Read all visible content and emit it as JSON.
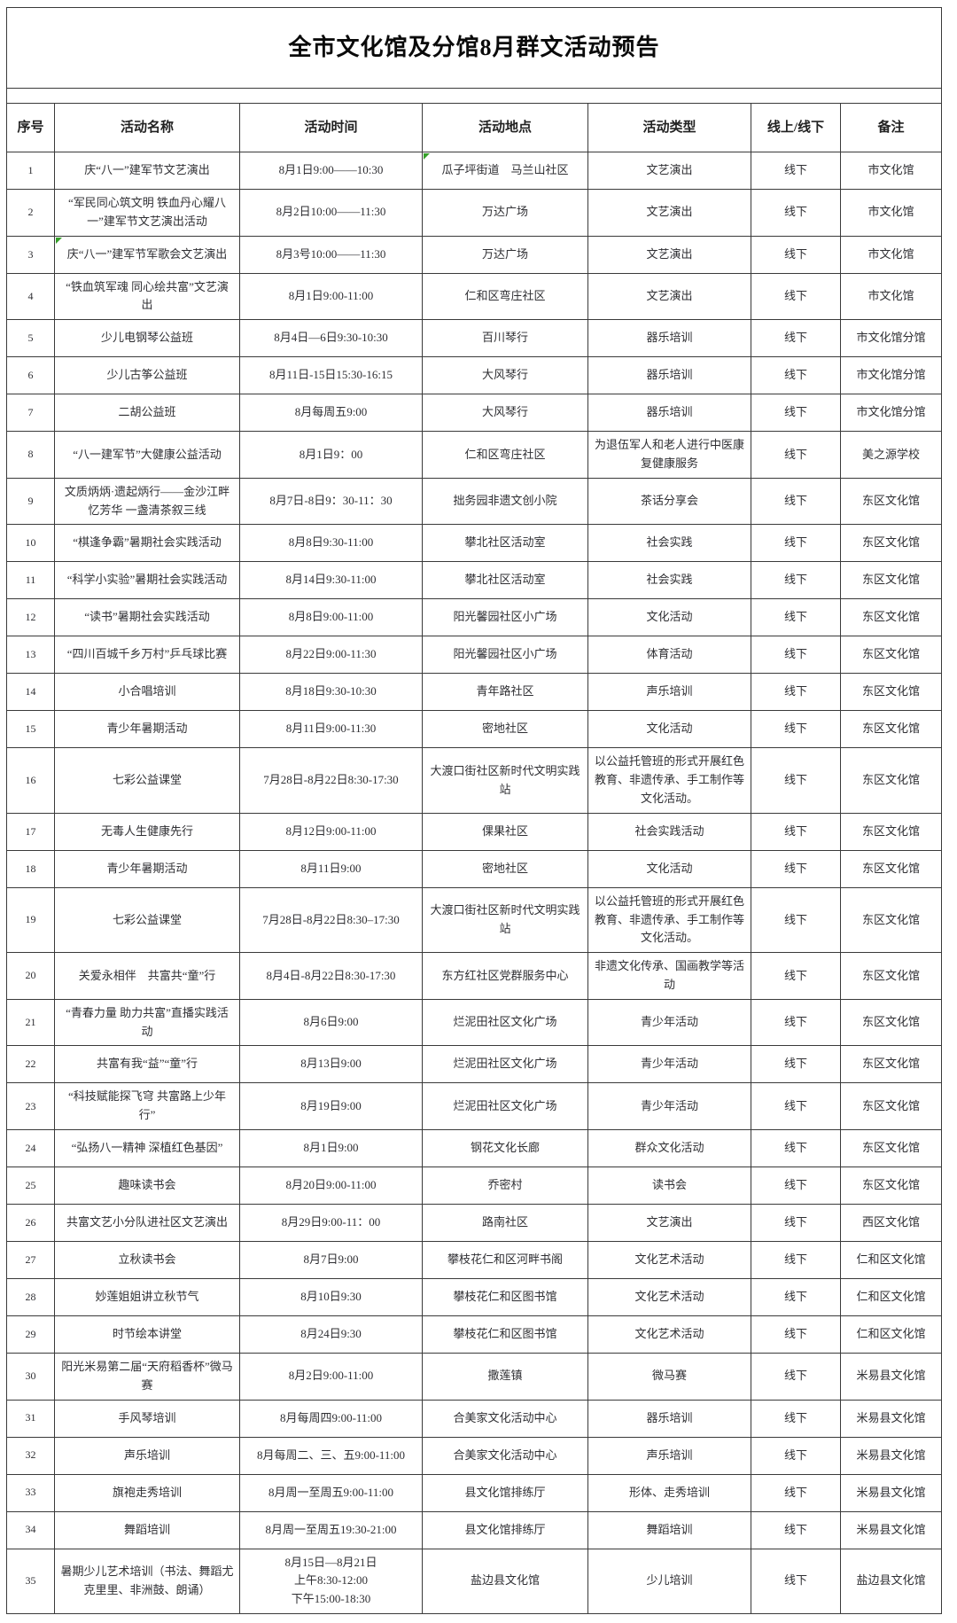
{
  "title": "全市文化馆及分馆8月群文活动预告",
  "colors": {
    "border": "#3a3a3a",
    "text": "#2f2f33",
    "comment_marker_green": "#35a029"
  },
  "table": {
    "headers": [
      "序号",
      "活动名称",
      "活动时间",
      "活动地点",
      "活动类型",
      "线上/线下",
      "备注"
    ],
    "rows": [
      {
        "no": "1",
        "name": "庆“八一”建军节文艺演出",
        "time": "8月1日9:00——10:30",
        "place": "瓜子坪街道　马兰山社区",
        "type": "文艺演出",
        "mode": "线下",
        "note": "市文化馆",
        "markers": {
          "place": true
        }
      },
      {
        "no": "2",
        "name": "“军民同心筑文明 铁血丹心耀八一”建军节文艺演出活动",
        "time": "8月2日10:00——11:30",
        "place": "万达广场",
        "type": "文艺演出",
        "mode": "线下",
        "note": "市文化馆"
      },
      {
        "no": "3",
        "name": "庆“八一”建军节军歌会文艺演出",
        "time": "8月3号10:00——11:30",
        "place": "万达广场",
        "type": "文艺演出",
        "mode": "线下",
        "note": "市文化馆",
        "markers": {
          "name": true
        }
      },
      {
        "no": "4",
        "name": "“铁血筑军魂 同心绘共富”文艺演出",
        "time": "8月1日9:00-11:00",
        "place": "仁和区弯庄社区",
        "type": "文艺演出",
        "mode": "线下",
        "note": "市文化馆"
      },
      {
        "no": "5",
        "name": "少儿电钢琴公益班",
        "time": "8月4日—6日9:30-10:30",
        "place": "百川琴行",
        "type": "器乐培训",
        "mode": "线下",
        "note": "市文化馆分馆"
      },
      {
        "no": "6",
        "name": "少儿古筝公益班",
        "time": "8月11日-15日15:30-16:15",
        "place": "大风琴行",
        "type": "器乐培训",
        "mode": "线下",
        "note": "市文化馆分馆"
      },
      {
        "no": "7",
        "name": "二胡公益班",
        "time": "8月每周五9:00",
        "place": "大风琴行",
        "type": "器乐培训",
        "mode": "线下",
        "note": "市文化馆分馆"
      },
      {
        "no": "8",
        "name": "“八一建军节”大健康公益活动",
        "time": "8月1日9：00",
        "place": "仁和区弯庄社区",
        "type": "为退伍军人和老人进行中医康复健康服务",
        "mode": "线下",
        "note": "美之源学校"
      },
      {
        "no": "9",
        "name": "文质炳炳·遗起炳行——金沙江畔忆芳华 一盏清茶叙三线",
        "time": "8月7日-8日9：30-11：30",
        "place": "拙务园非遗文创小院",
        "type": "茶话分享会",
        "mode": "线下",
        "note": "东区文化馆"
      },
      {
        "no": "10",
        "name": "“棋逢争霸”暑期社会实践活动",
        "time": "8月8日9:30-11:00",
        "place": "攀北社区活动室",
        "type": "社会实践",
        "mode": "线下",
        "note": "东区文化馆"
      },
      {
        "no": "11",
        "name": "“科学小实验”暑期社会实践活动",
        "time": "8月14日9:30-11:00",
        "place": "攀北社区活动室",
        "type": "社会实践",
        "mode": "线下",
        "note": "东区文化馆"
      },
      {
        "no": "12",
        "name": "“读书”暑期社会实践活动",
        "time": "8月8日9:00-11:00",
        "place": "阳光馨园社区小广场",
        "type": "文化活动",
        "mode": "线下",
        "note": "东区文化馆"
      },
      {
        "no": "13",
        "name": "“四川百城千乡万村”乒乓球比赛",
        "time": "8月22日9:00-11:30",
        "place": "阳光馨园社区小广场",
        "type": "体育活动",
        "mode": "线下",
        "note": "东区文化馆"
      },
      {
        "no": "14",
        "name": "小合唱培训",
        "time": "8月18日9:30-10:30",
        "place": "青年路社区",
        "type": "声乐培训",
        "mode": "线下",
        "note": "东区文化馆"
      },
      {
        "no": "15",
        "name": "青少年暑期活动",
        "time": "8月11日9:00-11:30",
        "place": "密地社区",
        "type": "文化活动",
        "mode": "线下",
        "note": "东区文化馆"
      },
      {
        "no": "16",
        "name": "七彩公益课堂",
        "time": "7月28日-8月22日8:30-17:30",
        "place": "大渡口街社区新时代文明实践站",
        "type": "以公益托管班的形式开展红色教育、非遗传承、手工制作等文化活动。",
        "mode": "线下",
        "note": "东区文化馆"
      },
      {
        "no": "17",
        "name": "无毒人生健康先行",
        "time": "8月12日9:00-11:00",
        "place": "倮果社区",
        "type": "社会实践活动",
        "mode": "线下",
        "note": "东区文化馆"
      },
      {
        "no": "18",
        "name": "青少年暑期活动",
        "time": "8月11日9:00",
        "place": "密地社区",
        "type": "文化活动",
        "mode": "线下",
        "note": "东区文化馆"
      },
      {
        "no": "19",
        "name": "七彩公益课堂",
        "time": "7月28日-8月22日8:30–17:30",
        "place": "大渡口街社区新时代文明实践站",
        "type": "以公益托管班的形式开展红色教育、非遗传承、手工制作等文化活动。",
        "mode": "线下",
        "note": "东区文化馆"
      },
      {
        "no": "20",
        "name": "关爱永相伴　共富共“童”行",
        "time": "8月4日-8月22日8:30-17:30",
        "place": "东方红社区党群服务中心",
        "type": "非遗文化传承、国画教学等活动",
        "mode": "线下",
        "note": "东区文化馆"
      },
      {
        "no": "21",
        "name": "“青春力量 助力共富”直播实践活动",
        "time": "8月6日9:00",
        "place": "烂泥田社区文化广场",
        "type": "青少年活动",
        "mode": "线下",
        "note": "东区文化馆"
      },
      {
        "no": "22",
        "name": "共富有我“益”“童”行",
        "time": "8月13日9:00",
        "place": "烂泥田社区文化广场",
        "type": "青少年活动",
        "mode": "线下",
        "note": "东区文化馆"
      },
      {
        "no": "23",
        "name": "“科技赋能探飞穹 共富路上少年行”",
        "time": "8月19日9:00",
        "place": "烂泥田社区文化广场",
        "type": "青少年活动",
        "mode": "线下",
        "note": "东区文化馆"
      },
      {
        "no": "24",
        "name": "“弘扬八一精神 深植红色基因”",
        "time": "8月1日9:00",
        "place": "钢花文化长廊",
        "type": "群众文化活动",
        "mode": "线下",
        "note": "东区文化馆"
      },
      {
        "no": "25",
        "name": "趣味读书会",
        "time": "8月20日9:00-11:00",
        "place": "乔密村",
        "type": "读书会",
        "mode": "线下",
        "note": "东区文化馆"
      },
      {
        "no": "26",
        "name": "共富文艺小分队进社区文艺演出",
        "time": "8月29日9:00-11：00",
        "place": "路南社区",
        "type": "文艺演出",
        "mode": "线下",
        "note": "西区文化馆"
      },
      {
        "no": "27",
        "name": "立秋读书会",
        "time": "8月7日9:00",
        "place": "攀枝花仁和区河畔书阁",
        "type": "文化艺术活动",
        "mode": "线下",
        "note": "仁和区文化馆"
      },
      {
        "no": "28",
        "name": "妙莲姐姐讲立秋节气",
        "time": "8月10日9:30",
        "place": "攀枝花仁和区图书馆",
        "type": "文化艺术活动",
        "mode": "线下",
        "note": "仁和区文化馆"
      },
      {
        "no": "29",
        "name": "时节绘本讲堂",
        "time": "8月24日9:30",
        "place": "攀枝花仁和区图书馆",
        "type": "文化艺术活动",
        "mode": "线下",
        "note": "仁和区文化馆"
      },
      {
        "no": "30",
        "name": "阳光米易第二届“天府稻香杯”微马赛",
        "time": "8月2日9:00-11:00",
        "place": "撒莲镇",
        "type": "微马赛",
        "mode": "线下",
        "note": "米易县文化馆"
      },
      {
        "no": "31",
        "name": "手风琴培训",
        "time": "8月每周四9:00-11:00",
        "place": "合美家文化活动中心",
        "type": "器乐培训",
        "mode": "线下",
        "note": "米易县文化馆"
      },
      {
        "no": "32",
        "name": "声乐培训",
        "time": "8月每周二、三、五9:00-11:00",
        "place": "合美家文化活动中心",
        "type": "声乐培训",
        "mode": "线下",
        "note": "米易县文化馆"
      },
      {
        "no": "33",
        "name": "旗袍走秀培训",
        "time": "8月周一至周五9:00-11:00",
        "place": "县文化馆排练厅",
        "type": "形体、走秀培训",
        "mode": "线下",
        "note": "米易县文化馆"
      },
      {
        "no": "34",
        "name": "舞蹈培训",
        "time": "8月周一至周五19:30-21:00",
        "place": "县文化馆排练厅",
        "type": "舞蹈培训",
        "mode": "线下",
        "note": "米易县文化馆"
      },
      {
        "no": "35",
        "name": "暑期少儿艺术培训（书法、舞蹈尤克里里、非洲鼓、朗诵）",
        "time": "8月15日—8月21日\n上午8:30-12:00\n下午15:00-18:30",
        "place": "盐边县文化馆",
        "type": "少儿培训",
        "mode": "线下",
        "note": "盐边县文化馆"
      }
    ]
  }
}
